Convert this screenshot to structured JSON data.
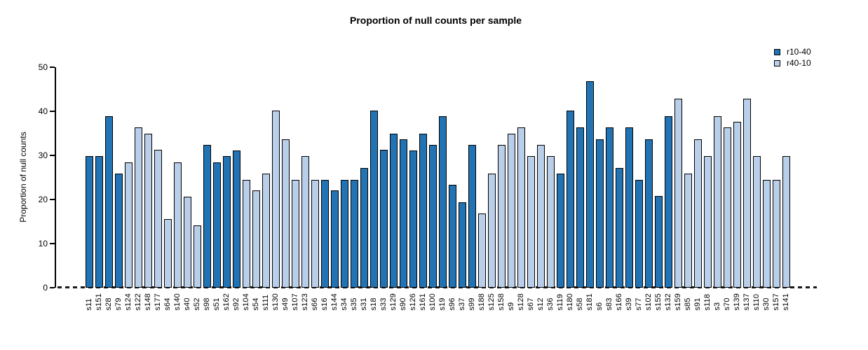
{
  "title": "Proportion of null counts per sample",
  "y_axis": {
    "label": "Proportion of null counts",
    "ticks": [
      0,
      10,
      20,
      30,
      40,
      50
    ]
  },
  "legend": [
    {
      "name": "r10-40",
      "color": "#2173b3"
    },
    {
      "name": "r40-10",
      "color": "#b9cee9"
    }
  ],
  "chart_data": {
    "type": "bar",
    "title": "Proportion of null counts per sample",
    "xlabel": "",
    "ylabel": "Proportion of null counts",
    "ylim": [
      0,
      50
    ],
    "grid": false,
    "legend_position": "top-right",
    "series_colors": {
      "r10-40": "#2173b3",
      "r40-10": "#b9cee9"
    },
    "samples": [
      {
        "label": "s11",
        "value": 29.8,
        "series": "r10-40"
      },
      {
        "label": "s151",
        "value": 29.8,
        "series": "r10-40"
      },
      {
        "label": "s28",
        "value": 38.9,
        "series": "r10-40"
      },
      {
        "label": "s79",
        "value": 25.9,
        "series": "r10-40"
      },
      {
        "label": "s124",
        "value": 28.4,
        "series": "r40-10"
      },
      {
        "label": "s122",
        "value": 36.3,
        "series": "r40-10"
      },
      {
        "label": "s148",
        "value": 35.0,
        "series": "r40-10"
      },
      {
        "label": "s177",
        "value": 31.2,
        "series": "r40-10"
      },
      {
        "label": "s64",
        "value": 15.6,
        "series": "r40-10"
      },
      {
        "label": "s140",
        "value": 28.4,
        "series": "r40-10"
      },
      {
        "label": "s40",
        "value": 20.7,
        "series": "r40-10"
      },
      {
        "label": "s52",
        "value": 14.2,
        "series": "r40-10"
      },
      {
        "label": "s98",
        "value": 32.4,
        "series": "r10-40"
      },
      {
        "label": "s51",
        "value": 28.4,
        "series": "r10-40"
      },
      {
        "label": "s162",
        "value": 29.8,
        "series": "r10-40"
      },
      {
        "label": "s92",
        "value": 31.1,
        "series": "r10-40"
      },
      {
        "label": "s104",
        "value": 24.5,
        "series": "r40-10"
      },
      {
        "label": "s54",
        "value": 22.0,
        "series": "r40-10"
      },
      {
        "label": "s111",
        "value": 25.9,
        "series": "r40-10"
      },
      {
        "label": "s130",
        "value": 40.1,
        "series": "r40-10"
      },
      {
        "label": "s49",
        "value": 33.7,
        "series": "r40-10"
      },
      {
        "label": "s107",
        "value": 24.5,
        "series": "r40-10"
      },
      {
        "label": "s123",
        "value": 29.8,
        "series": "r40-10"
      },
      {
        "label": "s66",
        "value": 24.5,
        "series": "r40-10"
      },
      {
        "label": "s16",
        "value": 24.5,
        "series": "r10-40"
      },
      {
        "label": "s144",
        "value": 22.0,
        "series": "r10-40"
      },
      {
        "label": "s34",
        "value": 24.5,
        "series": "r10-40"
      },
      {
        "label": "s35",
        "value": 24.5,
        "series": "r10-40"
      },
      {
        "label": "s31",
        "value": 27.2,
        "series": "r10-40"
      },
      {
        "label": "s18",
        "value": 40.1,
        "series": "r10-40"
      },
      {
        "label": "s33",
        "value": 31.2,
        "series": "r10-40"
      },
      {
        "label": "s129",
        "value": 35.0,
        "series": "r10-40"
      },
      {
        "label": "s90",
        "value": 33.7,
        "series": "r10-40"
      },
      {
        "label": "s126",
        "value": 31.1,
        "series": "r10-40"
      },
      {
        "label": "s161",
        "value": 35.0,
        "series": "r10-40"
      },
      {
        "label": "s100",
        "value": 32.4,
        "series": "r10-40"
      },
      {
        "label": "s19",
        "value": 38.9,
        "series": "r10-40"
      },
      {
        "label": "s96",
        "value": 23.3,
        "series": "r10-40"
      },
      {
        "label": "s37",
        "value": 19.4,
        "series": "r10-40"
      },
      {
        "label": "s99",
        "value": 32.4,
        "series": "r10-40"
      },
      {
        "label": "s188",
        "value": 16.9,
        "series": "r40-10"
      },
      {
        "label": "s125",
        "value": 25.9,
        "series": "r40-10"
      },
      {
        "label": "s158",
        "value": 32.4,
        "series": "r40-10"
      },
      {
        "label": "s9",
        "value": 35.0,
        "series": "r40-10"
      },
      {
        "label": "s128",
        "value": 36.3,
        "series": "r40-10"
      },
      {
        "label": "s67",
        "value": 29.8,
        "series": "r40-10"
      },
      {
        "label": "s12",
        "value": 32.4,
        "series": "r40-10"
      },
      {
        "label": "s36",
        "value": 29.8,
        "series": "r40-10"
      },
      {
        "label": "s119",
        "value": 25.9,
        "series": "r10-40"
      },
      {
        "label": "s180",
        "value": 40.1,
        "series": "r10-40"
      },
      {
        "label": "s58",
        "value": 36.3,
        "series": "r10-40"
      },
      {
        "label": "s181",
        "value": 46.8,
        "series": "r10-40"
      },
      {
        "label": "s6",
        "value": 33.7,
        "series": "r10-40"
      },
      {
        "label": "s83",
        "value": 36.3,
        "series": "r10-40"
      },
      {
        "label": "s166",
        "value": 27.2,
        "series": "r10-40"
      },
      {
        "label": "s39",
        "value": 36.3,
        "series": "r10-40"
      },
      {
        "label": "s77",
        "value": 24.5,
        "series": "r10-40"
      },
      {
        "label": "s102",
        "value": 33.7,
        "series": "r10-40"
      },
      {
        "label": "s155",
        "value": 20.8,
        "series": "r10-40"
      },
      {
        "label": "s132",
        "value": 38.9,
        "series": "r10-40"
      },
      {
        "label": "s159",
        "value": 42.8,
        "series": "r40-10"
      },
      {
        "label": "s85",
        "value": 25.9,
        "series": "r40-10"
      },
      {
        "label": "s91",
        "value": 33.7,
        "series": "r40-10"
      },
      {
        "label": "s118",
        "value": 29.8,
        "series": "r40-10"
      },
      {
        "label": "s3",
        "value": 38.9,
        "series": "r40-10"
      },
      {
        "label": "s70",
        "value": 36.3,
        "series": "r40-10"
      },
      {
        "label": "s139",
        "value": 37.6,
        "series": "r40-10"
      },
      {
        "label": "s137",
        "value": 42.8,
        "series": "r40-10"
      },
      {
        "label": "s110",
        "value": 29.8,
        "series": "r40-10"
      },
      {
        "label": "s30",
        "value": 24.5,
        "series": "r40-10"
      },
      {
        "label": "s157",
        "value": 24.5,
        "series": "r40-10"
      },
      {
        "label": "s141",
        "value": 29.8,
        "series": "r40-10"
      }
    ]
  }
}
